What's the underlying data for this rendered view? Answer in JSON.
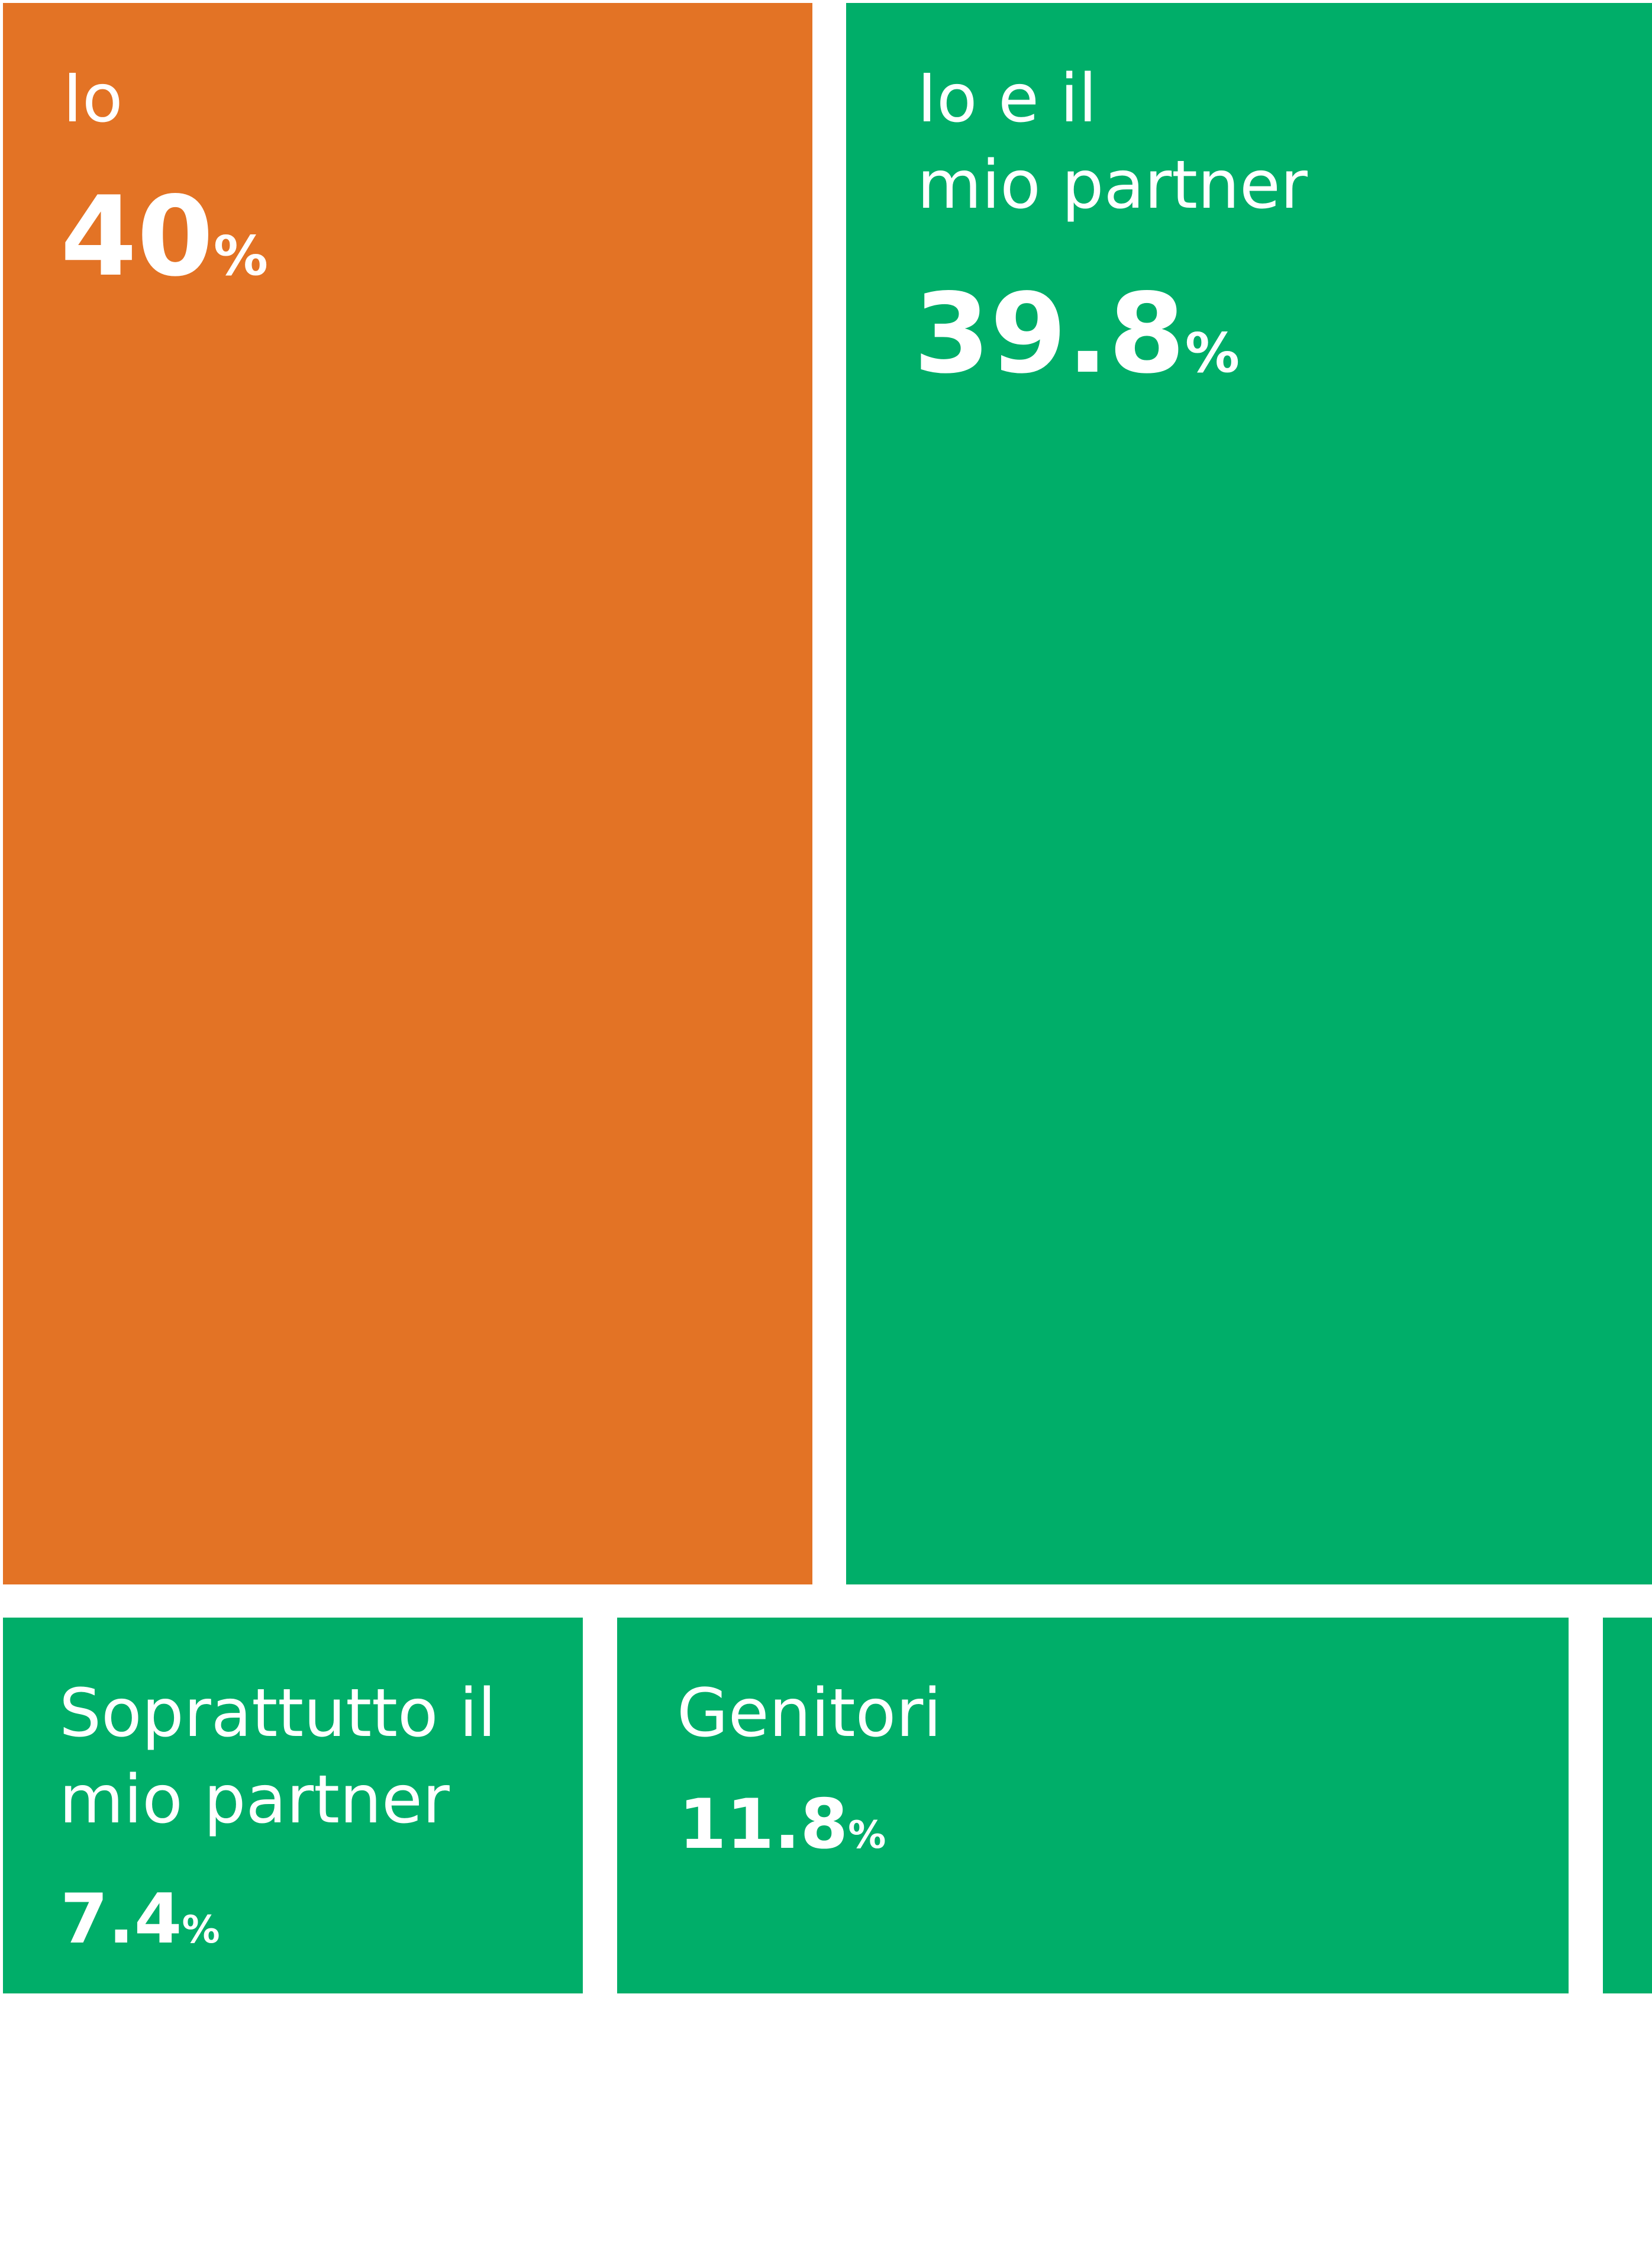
{
  "colors": {
    "orange": "#E37325",
    "green": "#00AE69",
    "background": "#FFFFFF",
    "text": "#FFFFFF"
  },
  "chart_data": {
    "type": "treemap",
    "categories": [
      "Io",
      "Io e il mio partner",
      "Soprattutto il mio partner",
      "Genitori",
      ""
    ],
    "values": [
      40,
      39.8,
      7.4,
      11.8,
      1
    ],
    "unit": "%",
    "tiles": [
      {
        "label": "Io",
        "value_text": "40",
        "unit": "%",
        "value": 40,
        "color": "#E37325"
      },
      {
        "label": "Io e il\nmio partner",
        "value_text": "39.8",
        "unit": "%",
        "value": 39.8,
        "color": "#00AE69"
      },
      {
        "label": "Soprattutto il\nmio partner",
        "value_text": "7.4",
        "unit": "%",
        "value": 7.4,
        "color": "#00AE69"
      },
      {
        "label": "Genitori",
        "value_text": "11.8",
        "unit": "%",
        "value": 11.8,
        "color": "#00AE69"
      },
      {
        "label": "",
        "value_text": "",
        "unit": "",
        "value": 1,
        "color": "#00AE69"
      }
    ]
  }
}
